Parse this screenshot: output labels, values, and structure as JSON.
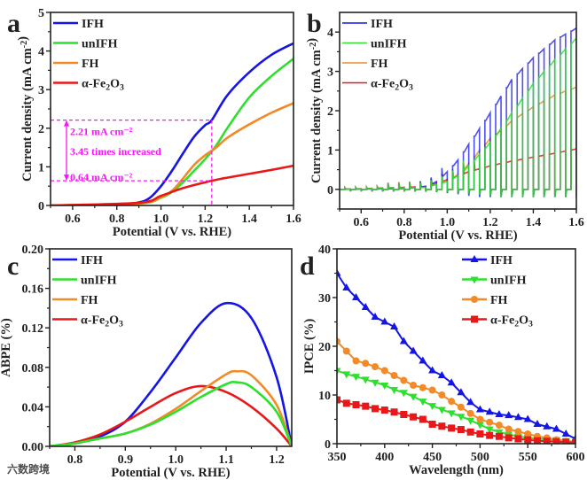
{
  "colors": {
    "IFH": "#1515e6",
    "unIFH": "#2ee02e",
    "FH": "#f28a28",
    "Fe2O3": "#e81818",
    "annotation": "#ff10ff",
    "axis": "#222222"
  },
  "watermark": "六数跨境",
  "chart_data": [
    {
      "panel": "a",
      "type": "line",
      "xlabel": "Potential (V vs. RHE)",
      "ylabel": "Current density (mA cm⁻²)",
      "xlim": [
        0.5,
        1.6
      ],
      "ylim": [
        0,
        5
      ],
      "xticks": [
        0.6,
        0.8,
        1.0,
        1.2,
        1.4,
        1.6
      ],
      "yticks": [
        0,
        1,
        2,
        3,
        4,
        5
      ],
      "legend_position": "top-left",
      "series": [
        {
          "name": "IFH",
          "key": "IFH",
          "x": [
            0.5,
            0.8,
            0.9,
            0.95,
            1.0,
            1.05,
            1.1,
            1.15,
            1.2,
            1.23,
            1.3,
            1.4,
            1.5,
            1.6
          ],
          "y": [
            0,
            0.02,
            0.08,
            0.2,
            0.5,
            0.9,
            1.35,
            1.78,
            2.08,
            2.21,
            2.85,
            3.45,
            3.9,
            4.2
          ]
        },
        {
          "name": "unIFH",
          "key": "unIFH",
          "x": [
            0.5,
            0.9,
            1.0,
            1.05,
            1.1,
            1.15,
            1.2,
            1.25,
            1.3,
            1.4,
            1.5,
            1.6
          ],
          "y": [
            0,
            0.05,
            0.2,
            0.35,
            0.6,
            0.9,
            1.2,
            1.55,
            2.0,
            2.8,
            3.35,
            3.8
          ]
        },
        {
          "name": "FH",
          "key": "FH",
          "x": [
            0.5,
            0.9,
            1.0,
            1.05,
            1.1,
            1.15,
            1.2,
            1.25,
            1.3,
            1.4,
            1.5,
            1.6
          ],
          "y": [
            0,
            0.05,
            0.22,
            0.38,
            0.7,
            1.05,
            1.3,
            1.5,
            1.75,
            2.1,
            2.4,
            2.65
          ]
        },
        {
          "name": "α-Fe2O3",
          "key": "Fe2O3",
          "x": [
            0.5,
            0.9,
            1.0,
            1.1,
            1.2,
            1.23,
            1.3,
            1.4,
            1.5,
            1.6
          ],
          "y": [
            0,
            0.07,
            0.25,
            0.45,
            0.6,
            0.64,
            0.72,
            0.82,
            0.92,
            1.03
          ]
        }
      ],
      "annotations": {
        "upper_value": "2.21 mA cm⁻²",
        "lower_value": "0.64 mA cm⁻²",
        "ratio_text": "3.45 times increased",
        "potential": 1.23,
        "upper": 2.21,
        "lower": 0.64
      }
    },
    {
      "panel": "b",
      "type": "line",
      "xlabel": "Potential (V vs. RHE)",
      "ylabel": "Current density (mA cm⁻²)",
      "xlim": [
        0.5,
        1.6
      ],
      "ylim": [
        -0.5,
        4.5
      ],
      "xticks": [
        0.6,
        0.8,
        1.0,
        1.2,
        1.4,
        1.6
      ],
      "yticks": [
        0,
        1,
        2,
        3,
        4
      ],
      "chop_period_V": 0.05,
      "legend_position": "top-left",
      "series": [
        {
          "name": "IFH",
          "key": "IFH",
          "x": [
            0.5,
            0.8,
            0.9,
            0.95,
            1.0,
            1.05,
            1.1,
            1.15,
            1.2,
            1.3,
            1.4,
            1.5,
            1.6
          ],
          "y": [
            0,
            0.02,
            0.08,
            0.2,
            0.45,
            0.75,
            1.15,
            1.55,
            1.95,
            2.8,
            3.35,
            3.8,
            4.1
          ]
        },
        {
          "name": "unIFH",
          "key": "unIFH",
          "x": [
            0.5,
            0.9,
            1.0,
            1.05,
            1.1,
            1.15,
            1.2,
            1.25,
            1.3,
            1.4,
            1.5,
            1.6
          ],
          "y": [
            0,
            0.05,
            0.2,
            0.35,
            0.6,
            0.9,
            1.2,
            1.55,
            1.95,
            2.7,
            3.3,
            3.85
          ]
        },
        {
          "name": "FH",
          "key": "FH",
          "x": [
            0.5,
            0.9,
            1.0,
            1.05,
            1.1,
            1.15,
            1.2,
            1.25,
            1.3,
            1.4,
            1.5,
            1.6
          ],
          "y": [
            0,
            0.05,
            0.22,
            0.38,
            0.65,
            1.0,
            1.3,
            1.5,
            1.75,
            2.1,
            2.4,
            2.6
          ]
        },
        {
          "name": "α-Fe2O3",
          "key": "Fe2O3",
          "x": [
            0.5,
            0.9,
            1.0,
            1.1,
            1.2,
            1.3,
            1.4,
            1.5,
            1.6
          ],
          "y": [
            0,
            0.07,
            0.25,
            0.45,
            0.6,
            0.72,
            0.82,
            0.92,
            1.03
          ]
        }
      ]
    },
    {
      "panel": "c",
      "type": "line",
      "xlabel": "Potential (V vs. RHE)",
      "ylabel": "ABPE (%)",
      "xlim": [
        0.75,
        1.23
      ],
      "ylim": [
        0,
        0.2
      ],
      "xticks": [
        0.8,
        0.9,
        1.0,
        1.1,
        1.2
      ],
      "yticks": [
        0,
        0.04,
        0.08,
        0.12,
        0.16,
        0.2
      ],
      "ytick_decimals": 2,
      "legend_position": "top-left",
      "series": [
        {
          "name": "IFH",
          "key": "IFH",
          "x": [
            0.75,
            0.8,
            0.85,
            0.9,
            0.95,
            1.0,
            1.05,
            1.1,
            1.15,
            1.2,
            1.23
          ],
          "y": [
            0,
            0.003,
            0.01,
            0.025,
            0.055,
            0.09,
            0.125,
            0.145,
            0.13,
            0.07,
            0
          ]
        },
        {
          "name": "unIFH",
          "key": "unIFH",
          "x": [
            0.75,
            0.8,
            0.85,
            0.9,
            0.95,
            1.0,
            1.05,
            1.1,
            1.12,
            1.15,
            1.2,
            1.23
          ],
          "y": [
            0,
            0.003,
            0.008,
            0.013,
            0.022,
            0.035,
            0.05,
            0.063,
            0.065,
            0.06,
            0.035,
            0
          ]
        },
        {
          "name": "FH",
          "key": "FH",
          "x": [
            0.75,
            0.8,
            0.85,
            0.9,
            0.95,
            1.0,
            1.05,
            1.1,
            1.12,
            1.15,
            1.2,
            1.23
          ],
          "y": [
            0,
            0.003,
            0.008,
            0.013,
            0.023,
            0.038,
            0.056,
            0.073,
            0.076,
            0.072,
            0.042,
            0
          ]
        },
        {
          "name": "α-Fe2O3",
          "key": "Fe2O3",
          "x": [
            0.75,
            0.8,
            0.85,
            0.9,
            0.95,
            1.0,
            1.05,
            1.1,
            1.15,
            1.2,
            1.23
          ],
          "y": [
            0,
            0.004,
            0.012,
            0.025,
            0.04,
            0.054,
            0.061,
            0.055,
            0.04,
            0.018,
            0
          ]
        }
      ]
    },
    {
      "panel": "d",
      "type": "line",
      "xlabel": "Wavelength (nm)",
      "ylabel": "IPCE (%)",
      "xlim": [
        350,
        600
      ],
      "ylim": [
        0,
        40
      ],
      "xticks": [
        350,
        400,
        450,
        500,
        550,
        600
      ],
      "yticks": [
        0,
        10,
        20,
        30,
        40
      ],
      "legend_position": "top-right",
      "x": [
        350,
        360,
        370,
        380,
        390,
        400,
        410,
        420,
        430,
        440,
        450,
        460,
        470,
        480,
        490,
        500,
        510,
        520,
        530,
        540,
        550,
        560,
        570,
        580,
        590,
        600
      ],
      "series": [
        {
          "name": "IFH",
          "key": "IFH",
          "marker": "triangle-up",
          "y": [
            35,
            32,
            30,
            28,
            26,
            25,
            24,
            21,
            19,
            17,
            15,
            14,
            12.5,
            10.5,
            8.5,
            7,
            6.5,
            6,
            5.8,
            5.4,
            5,
            4,
            3.5,
            3,
            2,
            1
          ]
        },
        {
          "name": "unIFH",
          "key": "unIFH",
          "marker": "triangle-down",
          "y": [
            15,
            14.3,
            13.8,
            13.2,
            12.6,
            12,
            11.1,
            10.5,
            9.7,
            8.7,
            7.8,
            7,
            6.3,
            5.6,
            4.8,
            3.9,
            3,
            2.4,
            1.9,
            1.5,
            1.2,
            1,
            0.9,
            0.8,
            0.6,
            0.4
          ]
        },
        {
          "name": "FH",
          "key": "FH",
          "marker": "circle",
          "y": [
            21,
            19,
            17,
            16.5,
            15.8,
            15,
            14,
            13,
            12,
            11.5,
            11,
            10,
            8.7,
            7.5,
            6.2,
            5,
            4.4,
            3.8,
            3,
            2.5,
            2,
            1.5,
            1.2,
            0.8,
            0.5,
            0.3
          ]
        },
        {
          "name": "α-Fe2O3",
          "key": "Fe2O3",
          "marker": "square",
          "y": [
            9,
            8.3,
            8,
            7.7,
            7.2,
            6.9,
            6.5,
            6,
            5.5,
            5,
            4,
            3.6,
            3.2,
            2.9,
            2.4,
            2,
            1.7,
            1.5,
            1.2,
            1,
            0.8,
            0.6,
            0.5,
            0.4,
            0.3,
            0.2
          ]
        }
      ]
    }
  ]
}
